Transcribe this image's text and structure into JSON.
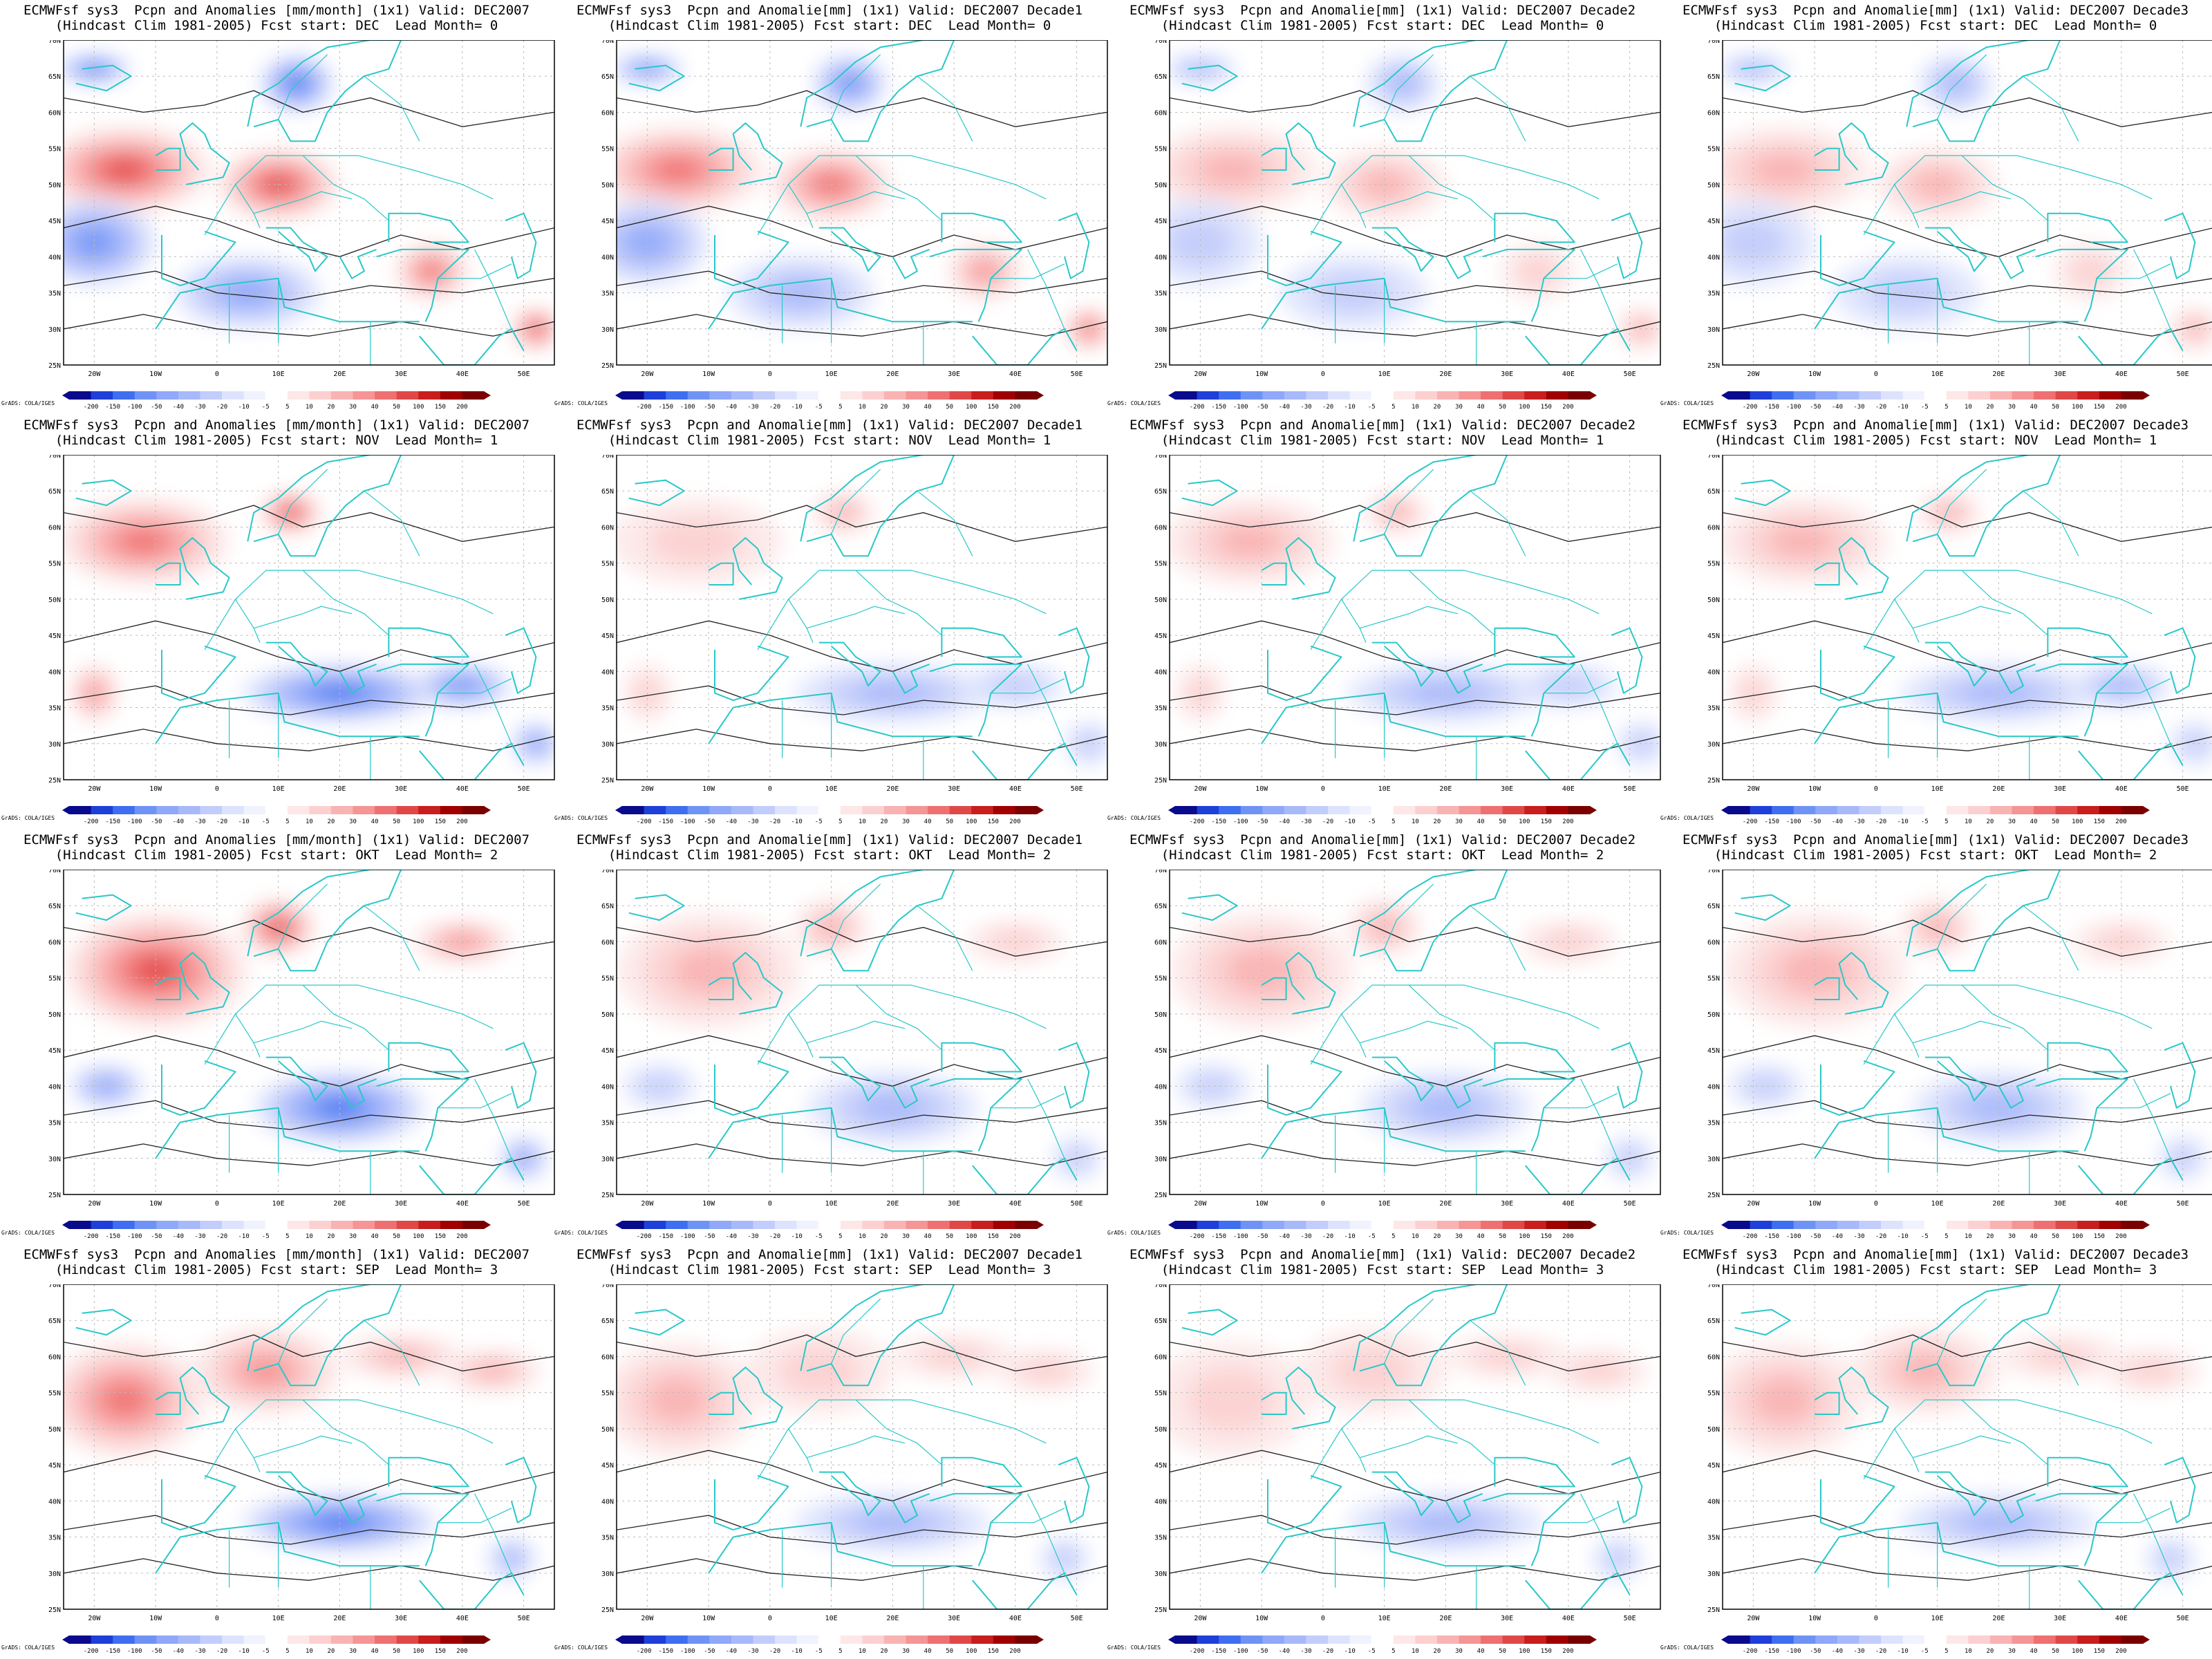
{
  "panels": [
    {
      "title1": "ECMWFsf sys3  Pcpn and Anomalies [mm/month] (1x1) Valid: DEC2007",
      "title2": "(Hindcast Clim 1981-2005) Fcst start: DEC  Lead Month= 0",
      "intensity": 1.0
    },
    {
      "title1": "ECMWFsf sys3  Pcpn and Anomalie[mm] (1x1) Valid: DEC2007 Decade1",
      "title2": "(Hindcast Clim 1981-2005) Fcst start: DEC  Lead Month= 0",
      "intensity": 0.8
    },
    {
      "title1": "ECMWFsf sys3  Pcpn and Anomalie[mm] (1x1) Valid: DEC2007 Decade2",
      "title2": "(Hindcast Clim 1981-2005) Fcst start: DEC  Lead Month= 0",
      "intensity": 0.35
    },
    {
      "title1": "ECMWFsf sys3  Pcpn and Anomalie[mm] (1x1) Valid: DEC2007 Decade3",
      "title2": "(Hindcast Clim 1981-2005) Fcst start: DEC  Lead Month= 0",
      "intensity": 0.3
    },
    {
      "title1": "ECMWFsf sys3  Pcpn and Anomalies [mm/month] (1x1) Valid: DEC2007",
      "title2": "(Hindcast Clim 1981-2005) Fcst start: NOV  Lead Month= 1",
      "intensity": 0.9
    },
    {
      "title1": "ECMWFsf sys3  Pcpn and Anomalie[mm] (1x1) Valid: DEC2007 Decade1",
      "title2": "(Hindcast Clim 1981-2005) Fcst start: NOV  Lead Month= 1",
      "intensity": 0.3
    },
    {
      "title1": "ECMWFsf sys3  Pcpn and Anomalie[mm] (1x1) Valid: DEC2007 Decade2",
      "title2": "(Hindcast Clim 1981-2005) Fcst start: NOV  Lead Month= 1",
      "intensity": 0.35
    },
    {
      "title1": "ECMWFsf sys3  Pcpn and Anomalie[mm] (1x1) Valid: DEC2007 Decade3",
      "title2": "(Hindcast Clim 1981-2005) Fcst start: NOV  Lead Month= 1",
      "intensity": 0.4
    },
    {
      "title1": "ECMWFsf sys3  Pcpn and Anomalies [mm/month] (1x1) Valid: DEC2007",
      "title2": "(Hindcast Clim 1981-2005) Fcst start: OKT  Lead Month= 2",
      "intensity": 1.0
    },
    {
      "title1": "ECMWFsf sys3  Pcpn and Anomalie[mm] (1x1) Valid: DEC2007 Decade1",
      "title2": "(Hindcast Clim 1981-2005) Fcst start: OKT  Lead Month= 2",
      "intensity": 0.45
    },
    {
      "title1": "ECMWFsf sys3  Pcpn and Anomalie[mm] (1x1) Valid: DEC2007 Decade2",
      "title2": "(Hindcast Clim 1981-2005) Fcst start: OKT  Lead Month= 2",
      "intensity": 0.35
    },
    {
      "title1": "ECMWFsf sys3  Pcpn and Anomalie[mm] (1x1) Valid: DEC2007 Decade3",
      "title2": "(Hindcast Clim 1981-2005) Fcst start: OKT  Lead Month= 2",
      "intensity": 0.45
    },
    {
      "title1": "ECMWFsf sys3  Pcpn and Anomalies [mm/month] (1x1) Valid: DEC2007",
      "title2": "(Hindcast Clim 1981-2005) Fcst start: SEP  Lead Month= 3",
      "intensity": 0.9
    },
    {
      "title1": "ECMWFsf sys3  Pcpn and Anomalie[mm] (1x1) Valid: DEC2007 Decade1",
      "title2": "(Hindcast Clim 1981-2005) Fcst start: SEP  Lead Month= 3",
      "intensity": 0.35
    },
    {
      "title1": "ECMWFsf sys3  Pcpn and Anomalie[mm] (1x1) Valid: DEC2007 Decade2",
      "title2": "(Hindcast Clim 1981-2005) Fcst start: SEP  Lead Month= 3",
      "intensity": 0.3
    },
    {
      "title1": "ECMWFsf sys3  Pcpn and Anomalie[mm] (1x1) Valid: DEC2007 Decade3",
      "title2": "(Hindcast Clim 1981-2005) Fcst start: SEP  Lead Month= 3",
      "intensity": 0.45
    }
  ],
  "axes": {
    "lat_labels": [
      "70N",
      "65N",
      "60N",
      "55N",
      "50N",
      "45N",
      "40N",
      "35N",
      "30N",
      "25N"
    ],
    "lon_labels": [
      "20W",
      "10W",
      "0",
      "10E",
      "20E",
      "30E",
      "40E",
      "50E"
    ]
  },
  "colorbar": {
    "credit": "GrADS: COLA/IGES",
    "levels": [
      "-200",
      "-150",
      "-100",
      "-50",
      "-40",
      "-30",
      "-20",
      "-10",
      "-5",
      "5",
      "10",
      "20",
      "30",
      "40",
      "50",
      "100",
      "150",
      "200"
    ],
    "colors": [
      "#0a0a8c",
      "#1f3fd9",
      "#3f6ff0",
      "#6f93f5",
      "#8fa8f8",
      "#a8b9fa",
      "#c3cdfb",
      "#dde3fd",
      "#f0f2fe",
      "#ffffff",
      "#fde7e7",
      "#fcd0d0",
      "#f9b3b3",
      "#f59595",
      "#ef7070",
      "#e04848",
      "#c81e1e",
      "#a00000",
      "#7a0000"
    ]
  },
  "palette": {
    "coastline": "#29c8c8",
    "contour": "#222222",
    "grid": "#bbbbbb",
    "positive": "#e85a5a",
    "negative": "#5a6ef0"
  }
}
